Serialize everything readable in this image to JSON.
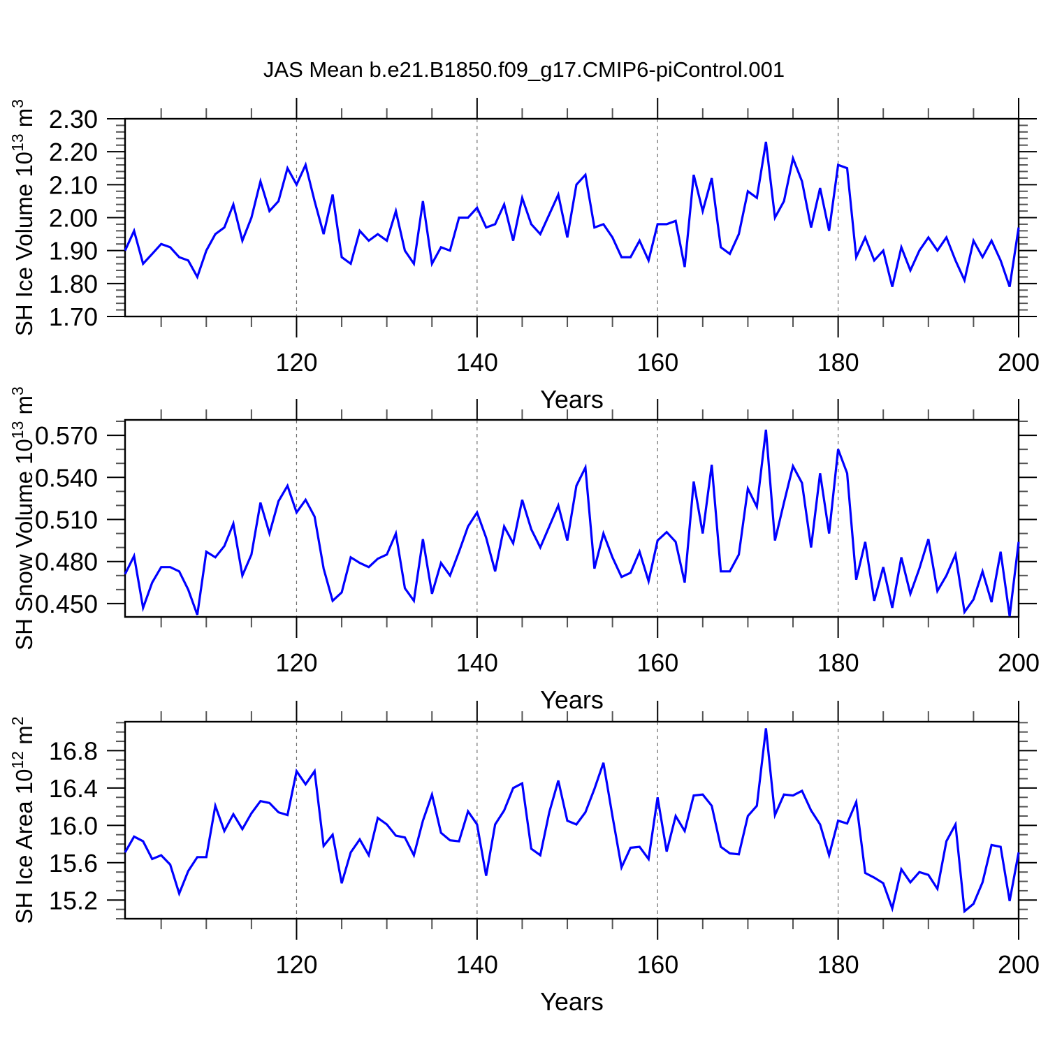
{
  "title": "JAS Mean b.e21.B1850.f09_g17.CMIP6-piControl.001",
  "figure": {
    "line_color": "#0000ff",
    "axis_color": "#000000",
    "grid_color": "#6e6e6e",
    "background": "#ffffff",
    "xlabel": "Years",
    "xtick_labels": [
      "120",
      "140",
      "160",
      "180",
      "200"
    ],
    "xticks": [
      120,
      140,
      160,
      180,
      200
    ],
    "grid_years": [
      120,
      140,
      160,
      180
    ]
  },
  "chart_data": [
    {
      "type": "line",
      "title": "",
      "xlabel": "Years",
      "ylabel": "SH Ice Volume 10^13 m^3",
      "ylabel_parts": [
        {
          "t": "SH Ice Volume 10",
          "sup": false
        },
        {
          "t": "13",
          "sup": true
        },
        {
          "t": " m",
          "sup": false
        },
        {
          "t": "3",
          "sup": true
        }
      ],
      "x": {
        "start": 101,
        "end": 200,
        "step": 1
      },
      "xlim": [
        101,
        200
      ],
      "ylim": [
        1.7,
        2.3
      ],
      "ymajor": [
        1.7,
        1.8,
        1.9,
        2.0,
        2.1,
        2.2,
        2.3
      ],
      "ymajor_labels": [
        "1.70",
        "1.80",
        "1.90",
        "2.00",
        "2.10",
        "2.20",
        "2.30"
      ],
      "yminor_step": 0.02,
      "grid": "vertical-dashed",
      "legend": "none",
      "series": [
        {
          "name": "SH Ice Volume",
          "values": [
            1.9,
            1.96,
            1.86,
            1.89,
            1.92,
            1.91,
            1.88,
            1.87,
            1.82,
            1.9,
            1.95,
            1.97,
            2.04,
            1.93,
            2.0,
            2.11,
            2.02,
            2.05,
            2.15,
            2.1,
            2.16,
            2.05,
            1.95,
            2.07,
            1.88,
            1.86,
            1.96,
            1.93,
            1.95,
            1.93,
            2.02,
            1.9,
            1.86,
            2.05,
            1.86,
            1.91,
            1.9,
            2.0,
            2.0,
            2.03,
            1.97,
            1.98,
            2.04,
            1.93,
            2.06,
            1.98,
            1.95,
            2.01,
            2.07,
            1.94,
            2.1,
            2.13,
            1.97,
            1.98,
            1.94,
            1.88,
            1.88,
            1.93,
            1.87,
            1.98,
            1.98,
            1.99,
            1.85,
            2.13,
            2.02,
            2.12,
            1.91,
            1.89,
            1.95,
            2.08,
            2.06,
            2.23,
            2.0,
            2.05,
            2.18,
            2.11,
            1.97,
            2.09,
            1.96,
            2.16,
            2.15,
            1.88,
            1.94,
            1.87,
            1.9,
            1.79,
            1.91,
            1.84,
            1.9,
            1.94,
            1.9,
            1.94,
            1.87,
            1.81,
            1.93,
            1.88,
            1.93,
            1.87,
            1.79,
            1.97
          ]
        }
      ]
    },
    {
      "type": "line",
      "title": "",
      "xlabel": "Years",
      "ylabel": "SH Snow Volume 10^13 m^3",
      "ylabel_parts": [
        {
          "t": "SH Snow Volume 10",
          "sup": false
        },
        {
          "t": "13",
          "sup": true
        },
        {
          "t": " m",
          "sup": false
        },
        {
          "t": "3",
          "sup": true
        }
      ],
      "x": {
        "start": 101,
        "end": 200,
        "step": 1
      },
      "xlim": [
        101,
        200
      ],
      "ylim": [
        0.4405,
        0.581
      ],
      "ymajor": [
        0.45,
        0.48,
        0.51,
        0.54,
        0.57
      ],
      "ymajor_labels": [
        "0.450",
        "0.480",
        "0.510",
        "0.540",
        "0.570"
      ],
      "yminor_step": 0.01,
      "grid": "vertical-dashed",
      "legend": "none",
      "series": [
        {
          "name": "SH Snow Volume",
          "values": [
            0.471,
            0.484,
            0.447,
            0.465,
            0.476,
            0.476,
            0.473,
            0.46,
            0.442,
            0.487,
            0.483,
            0.491,
            0.507,
            0.47,
            0.485,
            0.522,
            0.5,
            0.523,
            0.534,
            0.515,
            0.524,
            0.512,
            0.475,
            0.452,
            0.458,
            0.483,
            0.479,
            0.476,
            0.482,
            0.485,
            0.5,
            0.461,
            0.452,
            0.496,
            0.457,
            0.479,
            0.47,
            0.487,
            0.505,
            0.515,
            0.497,
            0.473,
            0.505,
            0.493,
            0.524,
            0.503,
            0.49,
            0.505,
            0.52,
            0.495,
            0.534,
            0.547,
            0.475,
            0.5,
            0.483,
            0.469,
            0.472,
            0.487,
            0.466,
            0.495,
            0.501,
            0.494,
            0.465,
            0.537,
            0.5,
            0.549,
            0.473,
            0.473,
            0.485,
            0.532,
            0.519,
            0.574,
            0.495,
            0.522,
            0.548,
            0.536,
            0.49,
            0.543,
            0.5,
            0.56,
            0.543,
            0.467,
            0.494,
            0.452,
            0.476,
            0.447,
            0.483,
            0.457,
            0.475,
            0.496,
            0.459,
            0.47,
            0.485,
            0.444,
            0.453,
            0.473,
            0.451,
            0.487,
            0.441,
            0.494
          ]
        }
      ]
    },
    {
      "type": "line",
      "title": "",
      "xlabel": "Years",
      "ylabel": "SH Ice Area 10^12 m^2",
      "ylabel_parts": [
        {
          "t": "SH Ice Area 10",
          "sup": false
        },
        {
          "t": "12",
          "sup": true
        },
        {
          "t": " m",
          "sup": false
        },
        {
          "t": "2",
          "sup": true
        }
      ],
      "x": {
        "start": 101,
        "end": 200,
        "step": 1
      },
      "xlim": [
        101,
        200
      ],
      "ylim": [
        15.0,
        17.11
      ],
      "ymajor": [
        15.2,
        15.6,
        16.0,
        16.4,
        16.8
      ],
      "ymajor_labels": [
        "15.2",
        "15.6",
        "16.0",
        "16.4",
        "16.8"
      ],
      "yminor_step": 0.1,
      "grid": "vertical-dashed",
      "legend": "none",
      "series": [
        {
          "name": "SH Ice Area",
          "values": [
            15.71,
            15.88,
            15.83,
            15.64,
            15.68,
            15.58,
            15.27,
            15.51,
            15.66,
            15.66,
            16.21,
            15.94,
            16.12,
            15.96,
            16.13,
            16.26,
            16.24,
            16.14,
            16.11,
            16.58,
            16.44,
            16.58,
            15.78,
            15.9,
            15.38,
            15.71,
            15.85,
            15.68,
            16.08,
            16.01,
            15.89,
            15.87,
            15.68,
            16.05,
            16.33,
            15.92,
            15.84,
            15.83,
            16.15,
            16.01,
            15.46,
            16.01,
            16.16,
            16.4,
            16.45,
            15.75,
            15.68,
            16.14,
            16.48,
            16.05,
            16.01,
            16.14,
            16.39,
            16.67,
            16.1,
            15.55,
            15.76,
            15.77,
            15.64,
            16.3,
            15.72,
            16.1,
            15.94,
            16.32,
            16.33,
            16.21,
            15.77,
            15.7,
            15.69,
            16.1,
            16.21,
            17.04,
            16.11,
            16.33,
            16.32,
            16.37,
            16.16,
            16.01,
            15.68,
            16.05,
            16.02,
            16.25,
            15.49,
            15.44,
            15.38,
            15.11,
            15.53,
            15.39,
            15.5,
            15.47,
            15.32,
            15.83,
            16.01,
            15.08,
            15.16,
            15.39,
            15.79,
            15.77,
            15.19,
            15.71
          ]
        }
      ]
    }
  ]
}
